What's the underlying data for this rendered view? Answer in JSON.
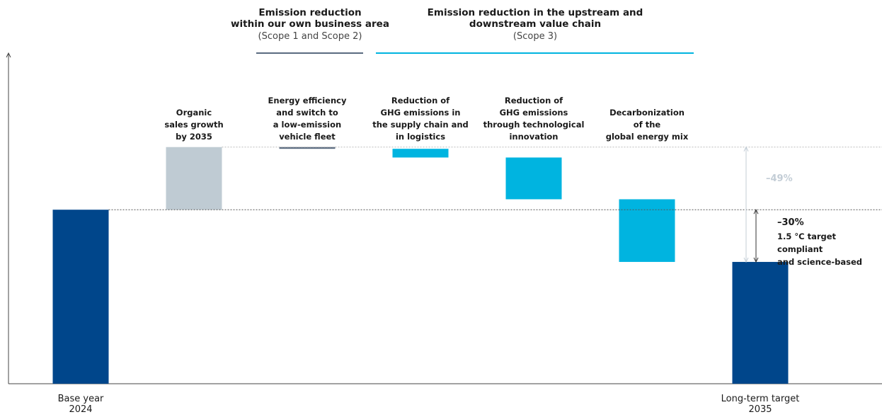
{
  "chart_data": {
    "type": "waterfall",
    "categories": [
      "Base year\n2024",
      "Organic\nsales growth\nby 2035",
      "Energy efficiency\nand switch to\na low-emission\nvehicle fleet",
      "Reduction of\nGHG emissions in\nthe supply chain and\nin logistics",
      "Reduction of\nGHG emissions\nthrough technological\ninnovation",
      "Decarbonization\nof the\nglobal energy mix",
      "Long-term target\n2035"
    ],
    "values": [
      100,
      36,
      -1,
      -5,
      -24,
      -36,
      70
    ],
    "measures": [
      "absolute",
      "relative",
      "relative",
      "relative",
      "relative",
      "relative",
      "total"
    ],
    "colors": [
      "#00468b",
      "#bfcbd3",
      "#5a6b80",
      "#00b4e0",
      "#00b4e0",
      "#00b4e0",
      "#00468b"
    ],
    "ylim": [
      0,
      190
    ],
    "groups": [
      {
        "title": "Emission reduction\nwithin our own business area",
        "subtitle": "(Scope 1 and Scope 2)",
        "color": "#5a6b80"
      },
      {
        "title": "Emission reduction in the upstream and\ndownstream value chain",
        "subtitle": "(Scope 3)",
        "color": "#00b4e0"
      }
    ],
    "annotations": {
      "peak_change": "–49%",
      "base_change": "–30%",
      "base_note": "1.5 °C target compliant\nand science-based"
    }
  }
}
